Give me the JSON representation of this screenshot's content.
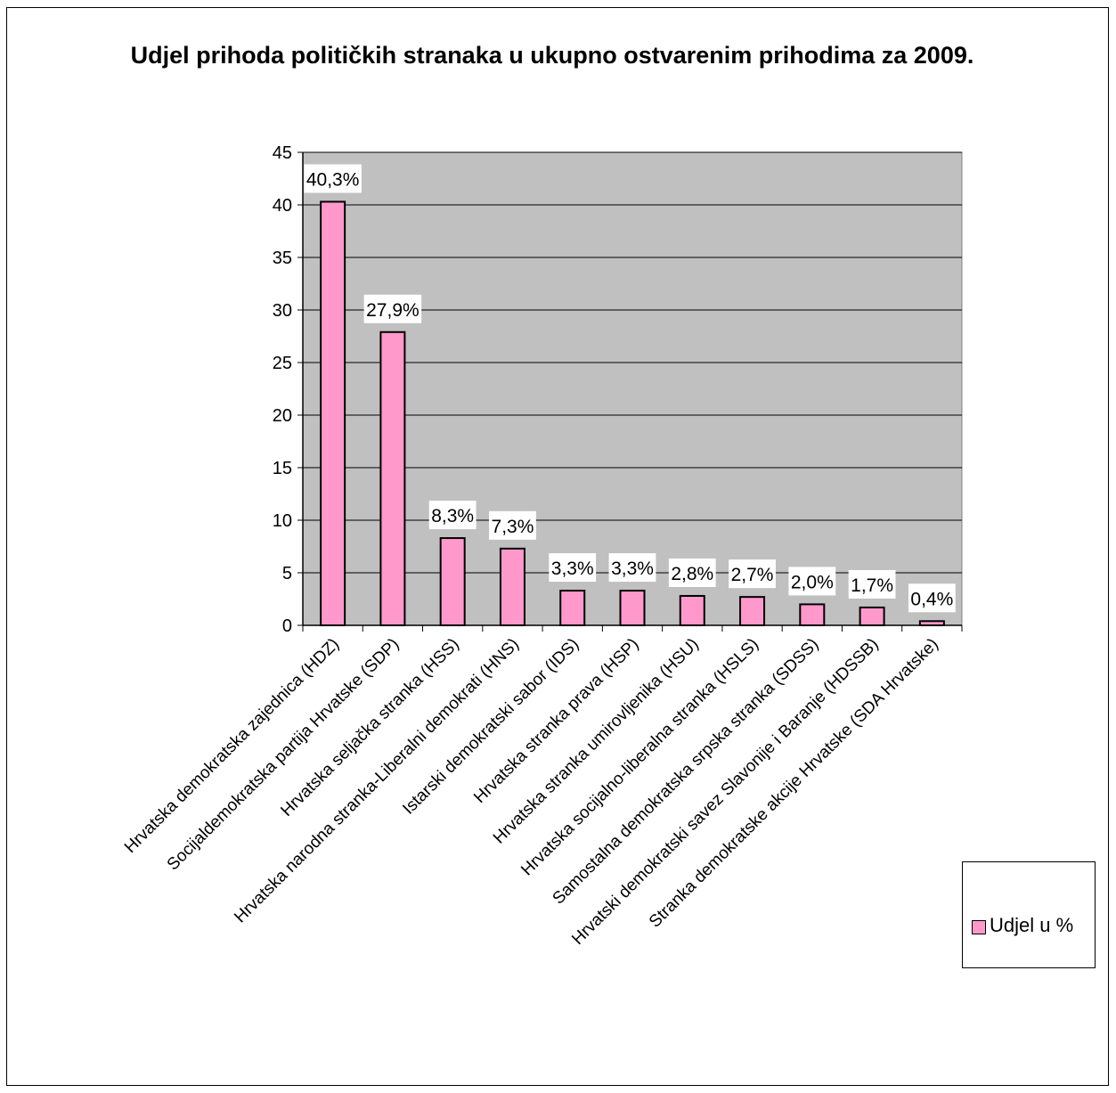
{
  "chart_data": {
    "type": "bar",
    "title": "Udjel prihoda političkih stranaka u ukupno ostvarenim prihodima za 2009.",
    "categories": [
      "Hrvatska demokratska zajednica (HDZ)",
      "Socijaldemokratska partija Hrvatske (SDP)",
      "Hrvatska seljačka stranka (HSS)",
      "Hrvatska narodna stranka-Liberalni demokrati (HNS)",
      "Istarski demokratski sabor (IDS)",
      "Hrvatska stranka prava (HSP)",
      "Hrvatska stranka umirovljenika (HSU)",
      "Hrvatska socijalno-liberalna stranka (HSLS)",
      "Samostalna demokratska srpska stranka (SDSS)",
      "Hrvatski demokratski savez Slavonije i Baranje (HDSSB)",
      "Stranka demokratske akcije Hrvatske (SDA Hrvatske)"
    ],
    "series": [
      {
        "name": "Udjel u %",
        "values": [
          40.3,
          27.9,
          8.3,
          7.3,
          3.3,
          3.3,
          2.8,
          2.7,
          2.0,
          1.7,
          0.4
        ],
        "labels": [
          "40,3%",
          "27,9%",
          "8,3%",
          "7,3%",
          "3,3%",
          "3,3%",
          "2,8%",
          "2,7%",
          "2,0%",
          "1,7%",
          "0,4%"
        ]
      }
    ],
    "yticks": [
      "0",
      "5",
      "10",
      "15",
      "20",
      "25",
      "30",
      "35",
      "40",
      "45"
    ],
    "ylim": [
      0,
      45
    ],
    "xlabel": "",
    "ylabel": "",
    "grid": true,
    "legend_position": "right",
    "colors": {
      "bar": "#ff99cc",
      "plot_bg": "#c0c0c0",
      "grid": "#000000"
    }
  }
}
